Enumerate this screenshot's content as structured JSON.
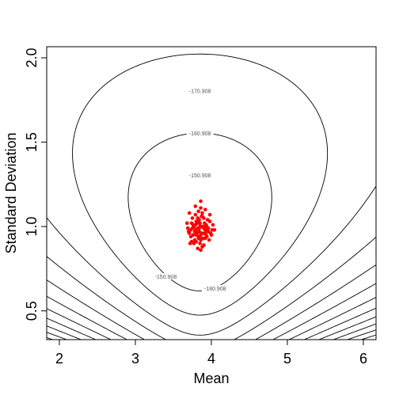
{
  "chart_data": {
    "type": "scatter",
    "title": "",
    "xlabel": "Mean",
    "ylabel": "Standard Deviation",
    "xlim": [
      2,
      6
    ],
    "ylim": [
      0.4,
      2.0
    ],
    "x_ticks": [
      "2",
      "3",
      "4",
      "5",
      "6"
    ],
    "y_ticks": [
      "0.5",
      "1.0",
      "1.5",
      "2.0"
    ],
    "x_tick_values": [
      2,
      3,
      4,
      5,
      6
    ],
    "y_tick_values": [
      0.5,
      1.0,
      1.5,
      2.0
    ],
    "grid": false,
    "contours": {
      "center_mean": 3.85,
      "center_sd": 0.98,
      "labeled_levels": [
        {
          "text": "-170.908",
          "mean": 3.85,
          "sd": 1.8
        },
        {
          "text": "-160.908",
          "mean": 3.85,
          "sd": 1.55
        },
        {
          "text": "-150.908",
          "mean": 3.85,
          "sd": 1.3
        },
        {
          "text": "-150.908",
          "mean": 3.4,
          "sd": 0.7
        },
        {
          "text": "-180.908",
          "mean": 4.05,
          "sd": 0.63
        }
      ],
      "levels": [
        0.85,
        2.1,
        4.1,
        6.8,
        10.2,
        14.2,
        18.8,
        24.0,
        29.8,
        36.2,
        43.2,
        50.8,
        59.0,
        67.8,
        77.2,
        87.2,
        98.0,
        110.0,
        123.0
      ]
    },
    "points_color": "#ff0000",
    "series": [
      {
        "x": [
          3.86,
          3.79,
          3.92,
          3.71,
          3.98,
          3.83,
          3.88,
          3.75,
          3.95,
          3.8,
          3.9,
          3.68,
          4.02,
          3.85,
          3.77,
          3.93,
          3.82,
          3.87,
          3.73,
          3.96,
          3.84,
          3.79,
          3.91,
          3.7,
          3.99,
          3.86,
          3.81,
          3.94,
          3.76,
          3.89,
          3.83,
          3.78,
          3.92,
          3.74,
          3.97,
          3.85,
          3.8,
          3.9,
          3.72,
          4.0,
          3.88,
          3.82,
          3.86,
          3.77,
          3.93,
          3.81,
          3.87,
          3.75,
          3.95,
          3.84,
          3.79,
          3.91,
          3.69,
          4.04,
          3.86,
          3.83,
          3.88,
          3.76,
          3.94,
          3.8,
          3.9,
          3.73,
          3.98,
          3.85,
          3.78,
          3.92,
          3.82,
          3.87,
          3.74,
          3.96,
          3.84,
          3.89,
          3.71,
          4.01,
          3.83,
          3.86,
          3.79,
          3.93,
          3.8,
          3.88,
          3.77,
          3.91,
          3.85,
          3.82
        ],
        "y": [
          1.15,
          1.12,
          1.1,
          1.08,
          1.07,
          1.09,
          1.06,
          1.05,
          1.04,
          1.03,
          1.05,
          1.02,
          1.01,
          1.02,
          1.0,
          1.01,
          0.99,
          1.0,
          0.98,
          0.99,
          0.97,
          0.98,
          0.96,
          0.97,
          0.96,
          0.95,
          0.96,
          0.94,
          0.95,
          0.93,
          0.94,
          0.92,
          0.93,
          0.91,
          0.92,
          0.9,
          0.91,
          0.89,
          0.9,
          0.95,
          0.88,
          0.87,
          0.86,
          1.0,
          0.97,
          1.03,
          1.06,
          0.99,
          0.98,
          1.04,
          1.07,
          1.02,
          0.99,
          0.98,
          1.11,
          0.93,
          0.96,
          1.01,
          1.0,
          0.95,
          0.99,
          0.94,
          1.03,
          1.0,
          0.97,
          0.98,
          1.05,
          0.96,
          1.02,
          0.97,
          0.99,
          1.0,
          0.96,
          0.98,
          1.04,
          0.92,
          1.01,
          0.95,
          0.97,
          1.08,
          0.9,
          0.99,
          0.94,
          1.02
        ]
      }
    ]
  }
}
